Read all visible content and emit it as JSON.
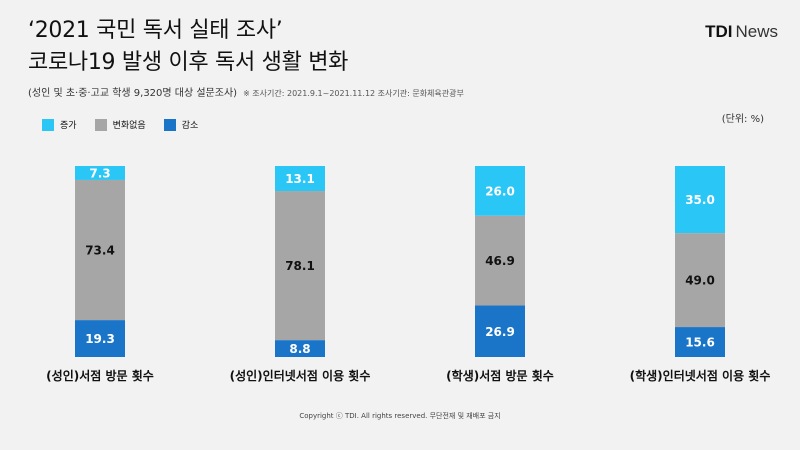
{
  "header": {
    "title_line1": "‘2021 국민 독서 실태 조사’",
    "title_line2": "코로나19 발생 이후 독서 생활 변화",
    "subtitle": "(성인 및 초·중·고교 학생 9,320명 대상 설문조사)",
    "note": "※ 조사기간: 2021.9.1~2021.11.12 조사기관: 문화체육관광부",
    "brand_tdi": "TDI",
    "brand_news": "News"
  },
  "unit_label": "(단위: %)",
  "footer": "Copyright ⓒ TDI. All rights reserved. 무단전재 및 재배포 금지",
  "colors": {
    "increase": "#29c6f6",
    "no_change": "#a6a6a6",
    "decrease": "#1a75c8"
  },
  "chart_data": {
    "type": "bar",
    "stacked": true,
    "orientation": "vertical",
    "categories": [
      "(성인)서점 방문 횟수",
      "(성인)인터넷서점 이용 횟수",
      "(학생)서점 방문 횟수",
      "(학생)인터넷서점 이용 횟수"
    ],
    "series": [
      {
        "name": "증가",
        "values": [
          7.3,
          13.1,
          26.0,
          35.0
        ]
      },
      {
        "name": "변화없음",
        "values": [
          73.4,
          78.1,
          46.9,
          49.0
        ]
      },
      {
        "name": "감소",
        "values": [
          19.3,
          8.8,
          26.9,
          15.6
        ]
      }
    ],
    "value_labels": [
      [
        "7.3",
        "13.1",
        "26.0",
        "35.0"
      ],
      [
        "73.4",
        "78.1",
        "46.9",
        "49.0"
      ],
      [
        "19.3",
        "8.8",
        "26.9",
        "15.6"
      ]
    ],
    "ylim": [
      0,
      100
    ],
    "legend_position": "top-left",
    "grid": false,
    "title": "",
    "xlabel": "",
    "ylabel": ""
  }
}
